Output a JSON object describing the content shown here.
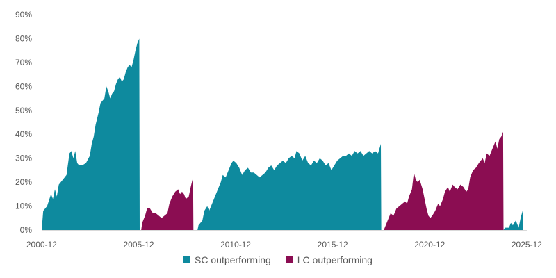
{
  "chart_data": {
    "type": "area",
    "title": "",
    "xlabel": "",
    "ylabel": "",
    "ylim": [
      0,
      90
    ],
    "yticks": [
      "0%",
      "10%",
      "20%",
      "30%",
      "40%",
      "50%",
      "60%",
      "70%",
      "80%",
      "90%"
    ],
    "xticks": [
      "2000-12",
      "2005-12",
      "2010-12",
      "2015-12",
      "2020-12",
      "2025-12"
    ],
    "xlim": [
      2000.92,
      2025.92
    ],
    "grid": false,
    "legend_position": "bottom",
    "series": [
      {
        "name": "SC outperforming",
        "color": "#0e8a9e",
        "segments": [
          [
            [
              2000.92,
              0
            ],
            [
              2001.0,
              8
            ],
            [
              2001.2,
              10
            ],
            [
              2001.4,
              15
            ],
            [
              2001.5,
              13
            ],
            [
              2001.6,
              17
            ],
            [
              2001.7,
              14
            ],
            [
              2001.8,
              19
            ],
            [
              2002.0,
              21
            ],
            [
              2002.2,
              23
            ],
            [
              2002.35,
              32
            ],
            [
              2002.45,
              33
            ],
            [
              2002.55,
              30
            ],
            [
              2002.65,
              33
            ],
            [
              2002.75,
              28
            ],
            [
              2002.85,
              27
            ],
            [
              2003.0,
              27
            ],
            [
              2003.2,
              28
            ],
            [
              2003.4,
              31
            ],
            [
              2003.5,
              36
            ],
            [
              2003.6,
              39
            ],
            [
              2003.7,
              44
            ],
            [
              2003.85,
              49
            ],
            [
              2003.95,
              53
            ],
            [
              2004.05,
              54
            ],
            [
              2004.15,
              55
            ],
            [
              2004.25,
              60
            ],
            [
              2004.35,
              58
            ],
            [
              2004.45,
              55
            ],
            [
              2004.55,
              57
            ],
            [
              2004.65,
              58
            ],
            [
              2004.75,
              61
            ],
            [
              2004.85,
              63
            ],
            [
              2004.95,
              64
            ],
            [
              2005.05,
              62
            ],
            [
              2005.15,
              63
            ],
            [
              2005.25,
              66
            ],
            [
              2005.35,
              68
            ],
            [
              2005.45,
              69
            ],
            [
              2005.55,
              68
            ],
            [
              2005.65,
              71
            ],
            [
              2005.75,
              75
            ],
            [
              2005.85,
              78
            ],
            [
              2005.95,
              80
            ],
            [
              2005.97,
              0
            ]
          ],
          [
            [
              2008.95,
              0
            ],
            [
              2009.0,
              2
            ],
            [
              2009.2,
              4
            ],
            [
              2009.3,
              8
            ],
            [
              2009.45,
              10
            ],
            [
              2009.55,
              8
            ],
            [
              2009.7,
              11
            ],
            [
              2009.85,
              14
            ],
            [
              2010.0,
              17
            ],
            [
              2010.15,
              20
            ],
            [
              2010.25,
              23
            ],
            [
              2010.4,
              22
            ],
            [
              2010.55,
              25
            ],
            [
              2010.7,
              28
            ],
            [
              2010.8,
              29
            ],
            [
              2010.95,
              28
            ],
            [
              2011.1,
              26
            ],
            [
              2011.25,
              23
            ],
            [
              2011.4,
              25
            ],
            [
              2011.55,
              26
            ],
            [
              2011.7,
              24
            ],
            [
              2011.85,
              24
            ],
            [
              2012.0,
              23
            ],
            [
              2012.15,
              22
            ],
            [
              2012.3,
              23
            ],
            [
              2012.45,
              24
            ],
            [
              2012.6,
              26
            ],
            [
              2012.75,
              27
            ],
            [
              2012.9,
              25
            ],
            [
              2013.05,
              27
            ],
            [
              2013.2,
              28
            ],
            [
              2013.35,
              29
            ],
            [
              2013.5,
              28
            ],
            [
              2013.65,
              30
            ],
            [
              2013.8,
              31
            ],
            [
              2013.95,
              30
            ],
            [
              2014.05,
              33
            ],
            [
              2014.2,
              32
            ],
            [
              2014.35,
              29
            ],
            [
              2014.5,
              31
            ],
            [
              2014.65,
              28
            ],
            [
              2014.8,
              27
            ],
            [
              2014.95,
              29
            ],
            [
              2015.1,
              28
            ],
            [
              2015.25,
              30
            ],
            [
              2015.4,
              29
            ],
            [
              2015.55,
              27
            ],
            [
              2015.7,
              28
            ],
            [
              2015.85,
              25
            ],
            [
              2016.0,
              27
            ],
            [
              2016.15,
              29
            ],
            [
              2016.3,
              30
            ],
            [
              2016.45,
              31
            ],
            [
              2016.6,
              31
            ],
            [
              2016.75,
              32
            ],
            [
              2016.9,
              31
            ],
            [
              2017.05,
              33
            ],
            [
              2017.2,
              32
            ],
            [
              2017.35,
              33
            ],
            [
              2017.5,
              31
            ],
            [
              2017.65,
              32
            ],
            [
              2017.8,
              33
            ],
            [
              2017.95,
              32
            ],
            [
              2018.1,
              33
            ],
            [
              2018.25,
              32
            ],
            [
              2018.4,
              36
            ],
            [
              2018.42,
              0
            ]
          ],
          [
            [
              2024.72,
              0
            ],
            [
              2024.8,
              1
            ],
            [
              2025.0,
              1
            ],
            [
              2025.1,
              3
            ],
            [
              2025.2,
              2
            ],
            [
              2025.35,
              4
            ],
            [
              2025.5,
              1
            ],
            [
              2025.6,
              5
            ],
            [
              2025.7,
              8
            ],
            [
              2025.72,
              0
            ]
          ]
        ]
      },
      {
        "name": "LC outperforming",
        "color": "#8b0d52",
        "segments": [
          [
            [
              2006.05,
              0
            ],
            [
              2006.1,
              3
            ],
            [
              2006.25,
              6
            ],
            [
              2006.35,
              9
            ],
            [
              2006.5,
              9
            ],
            [
              2006.65,
              7
            ],
            [
              2006.8,
              7
            ],
            [
              2006.95,
              6
            ],
            [
              2007.1,
              5
            ],
            [
              2007.25,
              6
            ],
            [
              2007.4,
              7
            ],
            [
              2007.5,
              11
            ],
            [
              2007.65,
              14
            ],
            [
              2007.8,
              16
            ],
            [
              2007.95,
              17
            ],
            [
              2008.05,
              15
            ],
            [
              2008.15,
              16
            ],
            [
              2008.25,
              15
            ],
            [
              2008.35,
              13
            ],
            [
              2008.5,
              14
            ],
            [
              2008.6,
              18
            ],
            [
              2008.72,
              22
            ],
            [
              2008.74,
              0
            ]
          ],
          [
            [
              2018.55,
              0
            ],
            [
              2018.6,
              1
            ],
            [
              2018.75,
              4
            ],
            [
              2018.9,
              7
            ],
            [
              2019.05,
              6
            ],
            [
              2019.2,
              9
            ],
            [
              2019.35,
              10
            ],
            [
              2019.5,
              11
            ],
            [
              2019.65,
              12
            ],
            [
              2019.75,
              11
            ],
            [
              2019.85,
              14
            ],
            [
              2020.0,
              17
            ],
            [
              2020.1,
              24
            ],
            [
              2020.2,
              21
            ],
            [
              2020.3,
              20
            ],
            [
              2020.4,
              21
            ],
            [
              2020.55,
              17
            ],
            [
              2020.65,
              13
            ],
            [
              2020.75,
              9
            ],
            [
              2020.85,
              6
            ],
            [
              2020.95,
              5
            ],
            [
              2021.05,
              6
            ],
            [
              2021.2,
              8
            ],
            [
              2021.35,
              11
            ],
            [
              2021.45,
              10
            ],
            [
              2021.6,
              13
            ],
            [
              2021.7,
              16
            ],
            [
              2021.85,
              18
            ],
            [
              2021.95,
              16
            ],
            [
              2022.1,
              19
            ],
            [
              2022.2,
              18
            ],
            [
              2022.35,
              17
            ],
            [
              2022.5,
              19
            ],
            [
              2022.65,
              18
            ],
            [
              2022.8,
              16
            ],
            [
              2022.9,
              17
            ],
            [
              2023.0,
              22
            ],
            [
              2023.15,
              25
            ],
            [
              2023.3,
              26
            ],
            [
              2023.45,
              28
            ],
            [
              2023.55,
              29
            ],
            [
              2023.65,
              30
            ],
            [
              2023.75,
              28
            ],
            [
              2023.85,
              32
            ],
            [
              2024.0,
              31
            ],
            [
              2024.1,
              33
            ],
            [
              2024.2,
              35
            ],
            [
              2024.3,
              37
            ],
            [
              2024.4,
              34
            ],
            [
              2024.5,
              38
            ],
            [
              2024.6,
              39
            ],
            [
              2024.7,
              41
            ],
            [
              2024.72,
              0
            ]
          ]
        ]
      }
    ]
  }
}
